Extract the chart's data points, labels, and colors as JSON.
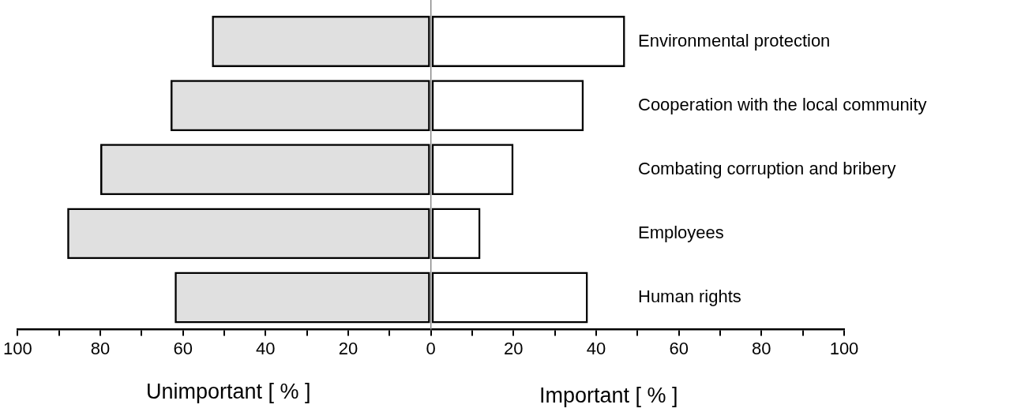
{
  "chart_data": {
    "type": "bar",
    "orientation": "horizontal",
    "stacked": true,
    "categories": [
      "Environmental protection",
      "Cooperation with the local community",
      "Combating corruption and bribery",
      "Employees",
      "Human rights"
    ],
    "series": [
      {
        "color": "#000000",
        "values": [
          -53,
          -63,
          -80,
          -88,
          -62
        ]
      },
      {
        "color": "#000000",
        "values": [
          47,
          37,
          20,
          12,
          38
        ]
      }
    ],
    "xlim": [
      -100,
      100
    ],
    "xticks": [
      {
        "value": -100,
        "label": "100"
      },
      {
        "value": -90,
        "label": null
      },
      {
        "value": -80,
        "label": "80"
      },
      {
        "value": -70,
        "label": null
      },
      {
        "value": -60,
        "label": "60"
      },
      {
        "value": -50,
        "label": null
      },
      {
        "value": -40,
        "label": "40"
      },
      {
        "value": -30,
        "label": null
      },
      {
        "value": -20,
        "label": "20"
      },
      {
        "value": -10,
        "label": null
      },
      0,
      {
        "value": 10,
        "label": null
      },
      20,
      {
        "value": 30,
        "label": null
      },
      40,
      {
        "value": 50,
        "label": null
      },
      60,
      {
        "value": 70,
        "label": null
      },
      80,
      {
        "value": 90,
        "label": null
      },
      100
    ],
    "xlabel": "Important [ % ]",
    "annotations": [
      "Unimportant [ % ]"
    ],
    "ref_lines": [
      {
        "axis": "x",
        "value": 0,
        "color": "#888888"
      }
    ],
    "grid": false,
    "legend": false
  }
}
